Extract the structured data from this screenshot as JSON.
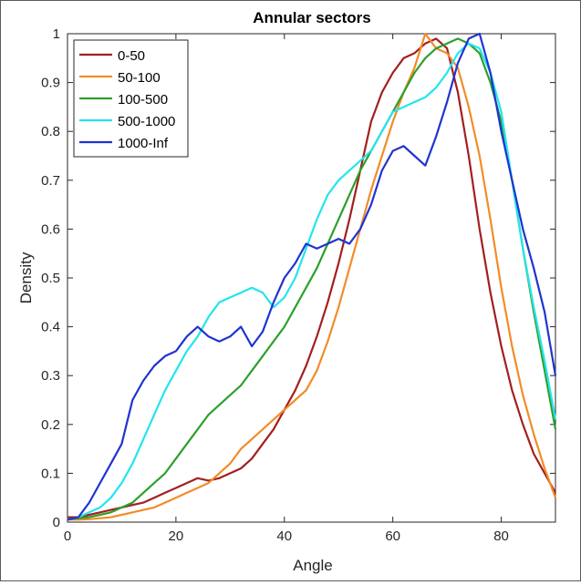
{
  "chart_data": {
    "type": "line",
    "title": "Annular sectors",
    "xlabel": "Angle",
    "ylabel": "Density",
    "xlim": [
      0,
      90
    ],
    "ylim": [
      0,
      1
    ],
    "xticks": [
      "0",
      "20",
      "40",
      "60",
      "80"
    ],
    "yticks": [
      "0",
      "0.1",
      "0.2",
      "0.3",
      "0.4",
      "0.5",
      "0.6",
      "0.7",
      "0.8",
      "0.9",
      "1"
    ],
    "grid": false,
    "legend_position": "top-left",
    "series": [
      {
        "name": "0-50",
        "color": "#a31f1f",
        "x": [
          0,
          2,
          4,
          6,
          8,
          10,
          12,
          14,
          16,
          18,
          20,
          22,
          24,
          26,
          28,
          30,
          32,
          34,
          36,
          38,
          40,
          42,
          44,
          46,
          48,
          50,
          52,
          54,
          56,
          58,
          60,
          62,
          64,
          66,
          68,
          70,
          72,
          74,
          76,
          78,
          80,
          82,
          84,
          86,
          88,
          90
        ],
        "y": [
          0.01,
          0.01,
          0.015,
          0.02,
          0.025,
          0.03,
          0.035,
          0.04,
          0.05,
          0.06,
          0.07,
          0.08,
          0.09,
          0.085,
          0.09,
          0.1,
          0.11,
          0.13,
          0.16,
          0.19,
          0.23,
          0.27,
          0.32,
          0.38,
          0.45,
          0.53,
          0.62,
          0.72,
          0.82,
          0.88,
          0.92,
          0.95,
          0.96,
          0.98,
          0.99,
          0.97,
          0.88,
          0.75,
          0.6,
          0.47,
          0.36,
          0.27,
          0.2,
          0.14,
          0.1,
          0.06
        ]
      },
      {
        "name": "50-100",
        "color": "#f28c28",
        "x": [
          0,
          2,
          4,
          6,
          8,
          10,
          12,
          14,
          16,
          18,
          20,
          22,
          24,
          26,
          28,
          30,
          32,
          34,
          36,
          38,
          40,
          42,
          44,
          46,
          48,
          50,
          52,
          54,
          56,
          58,
          60,
          62,
          64,
          66,
          68,
          70,
          72,
          74,
          76,
          78,
          80,
          82,
          84,
          86,
          88,
          90
        ],
        "y": [
          0.005,
          0.005,
          0.006,
          0.008,
          0.01,
          0.015,
          0.02,
          0.025,
          0.03,
          0.04,
          0.05,
          0.06,
          0.07,
          0.08,
          0.1,
          0.12,
          0.15,
          0.17,
          0.19,
          0.21,
          0.23,
          0.25,
          0.27,
          0.31,
          0.37,
          0.44,
          0.52,
          0.6,
          0.68,
          0.75,
          0.82,
          0.88,
          0.93,
          1.0,
          0.97,
          0.96,
          0.93,
          0.85,
          0.75,
          0.62,
          0.48,
          0.36,
          0.26,
          0.18,
          0.11,
          0.05
        ]
      },
      {
        "name": "100-500",
        "color": "#2ca02c",
        "x": [
          0,
          2,
          4,
          6,
          8,
          10,
          12,
          14,
          16,
          18,
          20,
          22,
          24,
          26,
          28,
          30,
          32,
          34,
          36,
          38,
          40,
          42,
          44,
          46,
          48,
          50,
          52,
          54,
          56,
          58,
          60,
          62,
          64,
          66,
          68,
          70,
          72,
          74,
          76,
          78,
          80,
          82,
          84,
          86,
          88,
          90
        ],
        "y": [
          0.005,
          0.008,
          0.01,
          0.015,
          0.02,
          0.03,
          0.04,
          0.06,
          0.08,
          0.1,
          0.13,
          0.16,
          0.19,
          0.22,
          0.24,
          0.26,
          0.28,
          0.31,
          0.34,
          0.37,
          0.4,
          0.44,
          0.48,
          0.52,
          0.57,
          0.62,
          0.67,
          0.72,
          0.76,
          0.8,
          0.84,
          0.88,
          0.92,
          0.95,
          0.97,
          0.98,
          0.99,
          0.98,
          0.96,
          0.9,
          0.82,
          0.7,
          0.56,
          0.43,
          0.31,
          0.19
        ]
      },
      {
        "name": "500-1000",
        "color": "#22e5ee",
        "x": [
          0,
          2,
          4,
          6,
          8,
          10,
          12,
          14,
          16,
          18,
          20,
          22,
          24,
          26,
          28,
          30,
          32,
          34,
          36,
          38,
          40,
          42,
          44,
          46,
          48,
          50,
          52,
          54,
          56,
          58,
          60,
          62,
          64,
          66,
          68,
          70,
          72,
          74,
          76,
          78,
          80,
          82,
          84,
          86,
          88,
          90
        ],
        "y": [
          0.005,
          0.01,
          0.02,
          0.03,
          0.05,
          0.08,
          0.12,
          0.17,
          0.22,
          0.27,
          0.31,
          0.35,
          0.38,
          0.42,
          0.45,
          0.46,
          0.47,
          0.48,
          0.47,
          0.44,
          0.46,
          0.5,
          0.56,
          0.62,
          0.67,
          0.7,
          0.72,
          0.74,
          0.76,
          0.8,
          0.84,
          0.85,
          0.86,
          0.87,
          0.89,
          0.92,
          0.96,
          0.98,
          0.97,
          0.92,
          0.84,
          0.7,
          0.56,
          0.44,
          0.33,
          0.21
        ]
      },
      {
        "name": "1000-Inf",
        "color": "#1f33d1",
        "x": [
          0,
          2,
          4,
          6,
          8,
          10,
          12,
          14,
          16,
          18,
          20,
          22,
          24,
          26,
          28,
          30,
          32,
          34,
          36,
          38,
          40,
          42,
          44,
          46,
          48,
          50,
          52,
          54,
          56,
          58,
          60,
          62,
          64,
          66,
          68,
          70,
          72,
          74,
          76,
          78,
          80,
          82,
          84,
          86,
          88,
          90
        ],
        "y": [
          0.005,
          0.01,
          0.04,
          0.08,
          0.12,
          0.16,
          0.25,
          0.29,
          0.32,
          0.34,
          0.35,
          0.38,
          0.4,
          0.38,
          0.37,
          0.38,
          0.4,
          0.36,
          0.39,
          0.45,
          0.5,
          0.53,
          0.57,
          0.56,
          0.57,
          0.58,
          0.57,
          0.6,
          0.65,
          0.72,
          0.76,
          0.77,
          0.75,
          0.73,
          0.79,
          0.86,
          0.94,
          0.99,
          1.0,
          0.92,
          0.8,
          0.7,
          0.6,
          0.52,
          0.43,
          0.3
        ]
      }
    ]
  }
}
